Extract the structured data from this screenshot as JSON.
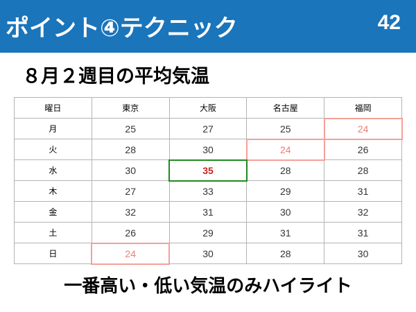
{
  "header": {
    "title": "ポイント④テクニック",
    "page_number": "42",
    "background_color": "#1a75bb"
  },
  "subtitle": "８月２週目の平均気温",
  "table": {
    "columns": [
      "曜日",
      "東京",
      "大阪",
      "名古屋",
      "福岡"
    ],
    "rows": [
      {
        "day": "月",
        "values": [
          "25",
          "27",
          "25",
          "24"
        ]
      },
      {
        "day": "火",
        "values": [
          "28",
          "30",
          "24",
          "26"
        ]
      },
      {
        "day": "水",
        "values": [
          "30",
          "35",
          "28",
          "28"
        ]
      },
      {
        "day": "木",
        "values": [
          "27",
          "33",
          "29",
          "31"
        ]
      },
      {
        "day": "金",
        "values": [
          "32",
          "31",
          "30",
          "32"
        ]
      },
      {
        "day": "土",
        "values": [
          "26",
          "29",
          "31",
          "31"
        ]
      },
      {
        "day": "日",
        "values": [
          "24",
          "30",
          "28",
          "30"
        ]
      }
    ],
    "highlights": {
      "low_color": "#f4a09b",
      "high_color": "#1f8a1f",
      "high_text_color": "#c8251c"
    }
  },
  "footer": "一番高い・低い気温のみハイライト"
}
